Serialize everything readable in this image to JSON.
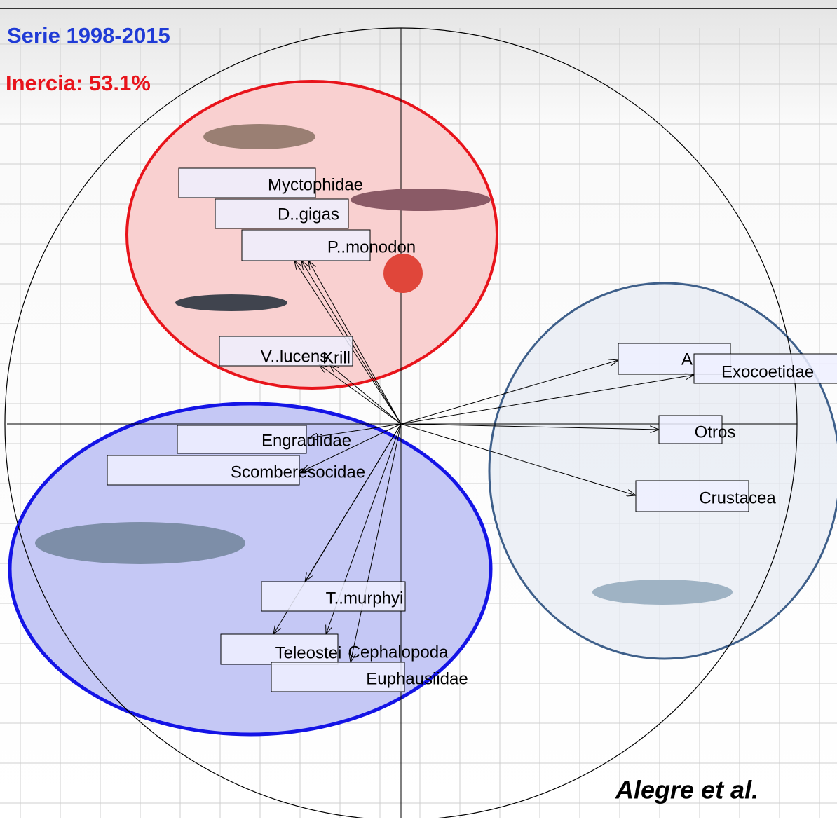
{
  "header": {
    "title": "Serie 1998-2015",
    "subtitle": "Inercia: 53.1%"
  },
  "nodes": [
    {
      "label": "Myctophidae"
    },
    {
      "label": "D..gigas"
    },
    {
      "label": "P..monodon"
    },
    {
      "label": "V..lucens"
    },
    {
      "label": "Krill"
    },
    {
      "label": "A"
    },
    {
      "label": "Exocoetidae"
    },
    {
      "label": "Otros"
    },
    {
      "label": "Crustacea"
    },
    {
      "label": "Engraulidae"
    },
    {
      "label": "Scomberesocidae"
    },
    {
      "label": "T..murphyi"
    },
    {
      "label": "Teleostei"
    },
    {
      "label": "Cephalopoda"
    },
    {
      "label": "Euphausiidae"
    }
  ],
  "footer": {
    "credit": "Alegre et al."
  }
}
